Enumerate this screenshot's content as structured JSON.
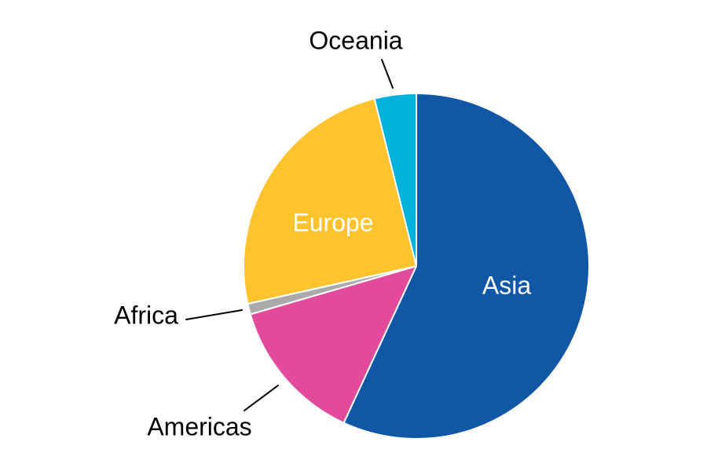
{
  "chart_data": {
    "type": "pie",
    "start_angle_deg": 0,
    "direction": "clockwise",
    "unit": "percent-share",
    "background_color": "#FFFFFF",
    "slice_border_color": "#FFFFFF",
    "leader_line_color": "#000000",
    "slices": [
      {
        "name": "Asia",
        "value": 56.9,
        "color": "#1057A5",
        "label_color": "#FFFFFF",
        "label_placement": "inside"
      },
      {
        "name": "Americas",
        "value": 13.6,
        "color": "#E24B9B",
        "label_color": "#000000",
        "label_placement": "outside-leader-line"
      },
      {
        "name": "Africa",
        "value": 1.0,
        "color": "#AAAAAA",
        "label_color": "#000000",
        "label_placement": "outside-leader-line"
      },
      {
        "name": "Europe",
        "value": 24.6,
        "color": "#FFC32D",
        "label_color": "#FFFFFF",
        "label_placement": "inside"
      },
      {
        "name": "Oceania",
        "value": 3.9,
        "color": "#00B2DC",
        "label_color": "#000000",
        "label_placement": "outside-leader-line"
      }
    ],
    "legend": "none",
    "title": ""
  }
}
